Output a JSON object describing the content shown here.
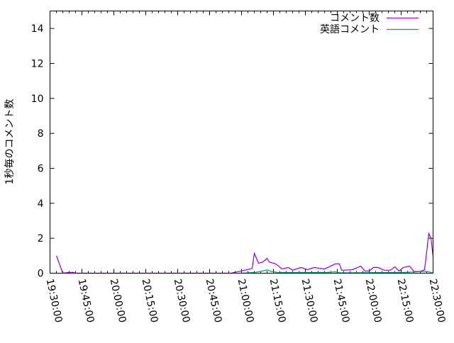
{
  "chart_data": {
    "type": "line",
    "title": "",
    "xlabel": "",
    "ylabel": "1秒毎のコメント数",
    "xlim": [
      "19:30:00",
      "22:30:00"
    ],
    "ylim": [
      0,
      15
    ],
    "xticks": [
      "19:30:00",
      "19:45:00",
      "20:00:00",
      "20:15:00",
      "20:30:00",
      "20:45:00",
      "21:00:00",
      "21:15:00",
      "21:30:00",
      "21:45:00",
      "22:00:00",
      "22:15:00",
      "22:30:00"
    ],
    "yticks": [
      0,
      2,
      4,
      6,
      8,
      10,
      12,
      14
    ],
    "grid": false,
    "legend": "top-right",
    "series": [
      {
        "name": "コメント数",
        "color": "#9400d3",
        "points": [
          [
            "19:33",
            1.0
          ],
          [
            "19:36",
            0
          ],
          [
            "19:39",
            0.05
          ],
          [
            "19:41",
            0.05
          ],
          [
            "19:42",
            0
          ],
          [
            "20:55",
            0
          ],
          [
            "21:00",
            0.13
          ],
          [
            "21:04",
            0.24
          ],
          [
            "21:05",
            0.28
          ],
          [
            "21:06",
            1.13
          ],
          [
            "21:08",
            0.57
          ],
          [
            "21:10",
            0.64
          ],
          [
            "21:12",
            0.85
          ],
          [
            "21:13",
            0.64
          ],
          [
            "21:16",
            0.53
          ],
          [
            "21:17",
            0.44
          ],
          [
            "21:19",
            0.24
          ],
          [
            "21:22",
            0.33
          ],
          [
            "21:24",
            0.17
          ],
          [
            "21:28",
            0.33
          ],
          [
            "21:31",
            0.2
          ],
          [
            "21:34",
            0.33
          ],
          [
            "21:39",
            0.24
          ],
          [
            "21:44",
            0.53
          ],
          [
            "21:46",
            0.53
          ],
          [
            "21:47",
            0.17
          ],
          [
            "21:52",
            0.2
          ],
          [
            "21:56",
            0.4
          ],
          [
            "21:58",
            0.12
          ],
          [
            "22:00",
            0.12
          ],
          [
            "22:02",
            0.33
          ],
          [
            "22:04",
            0.33
          ],
          [
            "22:07",
            0.17
          ],
          [
            "22:10",
            0.17
          ],
          [
            "22:12",
            0.37
          ],
          [
            "22:14",
            0.12
          ],
          [
            "22:16",
            0.33
          ],
          [
            "22:19",
            0.4
          ],
          [
            "22:21",
            0.1
          ],
          [
            "22:24",
            0.1
          ],
          [
            "22:26",
            0.2
          ],
          [
            "22:28",
            2.27
          ],
          [
            "22:29",
            2.0
          ],
          [
            "22:30",
            0.93
          ]
        ]
      },
      {
        "name": "英語コメント",
        "color": "#009e73",
        "points": [
          [
            "21:00",
            0
          ],
          [
            "21:06",
            0.04
          ],
          [
            "21:09",
            0.1
          ],
          [
            "21:12",
            0.19
          ],
          [
            "21:14",
            0.1
          ],
          [
            "21:17",
            0.04
          ],
          [
            "21:20",
            0.04
          ],
          [
            "21:40",
            0.04
          ],
          [
            "21:44",
            0.08
          ],
          [
            "21:46",
            0.02
          ],
          [
            "22:12",
            0.04
          ],
          [
            "22:16",
            0.04
          ],
          [
            "22:26",
            0.1
          ],
          [
            "22:28",
            0.08
          ],
          [
            "22:30",
            0
          ]
        ]
      }
    ]
  }
}
